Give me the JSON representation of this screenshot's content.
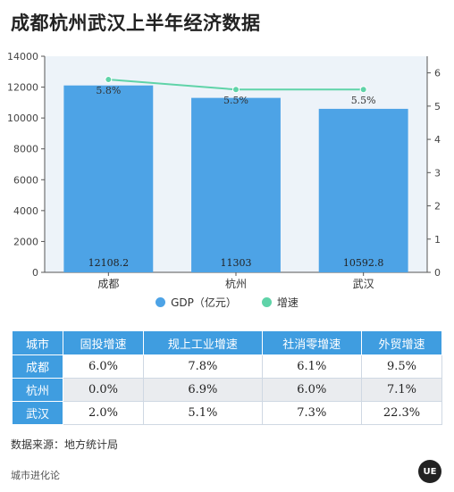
{
  "page": {
    "title": "成都杭州武汉上半年经济数据"
  },
  "chart_data": {
    "type": "bar",
    "categories": [
      "成都",
      "杭州",
      "武汉"
    ],
    "series": [
      {
        "name": "GDP（亿元）",
        "kind": "bar",
        "axis": "left",
        "color": "#4da3e6",
        "values": [
          12108.2,
          11303,
          10592.8
        ],
        "labels": [
          "12108.2",
          "11303",
          "10592.8"
        ]
      },
      {
        "name": "增速",
        "kind": "line",
        "axis": "right",
        "color": "#5fd3a8",
        "values": [
          5.8,
          5.5,
          5.5
        ],
        "labels": [
          "5.8%",
          "5.5%",
          "5.5%"
        ]
      }
    ],
    "left_axis": {
      "ylim": [
        0,
        14000
      ],
      "ticks": [
        "0",
        "2000",
        "4000",
        "6000",
        "8000",
        "10000",
        "12000",
        "14000"
      ]
    },
    "right_axis": {
      "ylim": [
        0,
        6.5
      ],
      "ticks": [
        "0",
        "1",
        "2",
        "3",
        "4",
        "5",
        "6"
      ]
    },
    "grid": false,
    "legend_position": "bottom"
  },
  "table": {
    "headers": [
      "城市",
      "固投增速",
      "规上工业增速",
      "社消零增速",
      "外贸增速"
    ],
    "rows": [
      [
        "成都",
        "6.0%",
        "7.8%",
        "6.1%",
        "9.5%"
      ],
      [
        "杭州",
        "0.0%",
        "6.9%",
        "6.0%",
        "7.1%"
      ],
      [
        "武汉",
        "2.0%",
        "5.1%",
        "7.3%",
        "22.3%"
      ]
    ]
  },
  "source": "数据来源：地方统计局",
  "footer": {
    "brand": "城市进化论",
    "logo_text": "UE"
  }
}
